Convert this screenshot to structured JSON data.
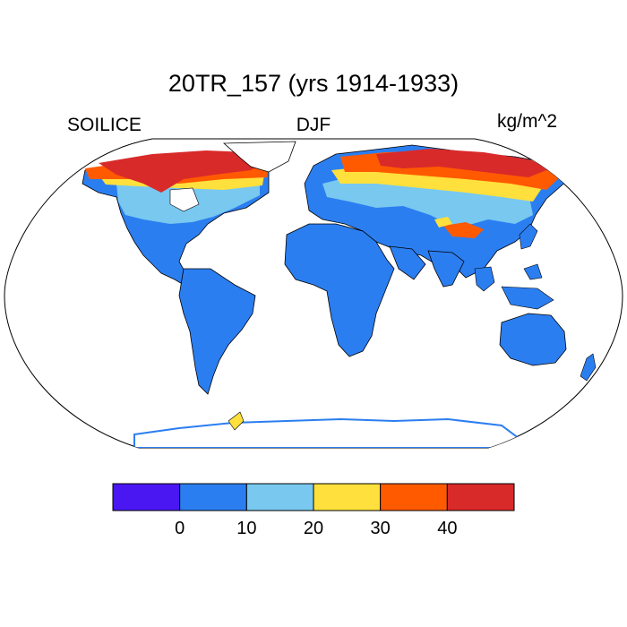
{
  "plot": {
    "title": "20TR_157 (yrs 1914-1933)",
    "left_label": "SOILICE",
    "center_label": "DJF",
    "right_label": "kg/m^2"
  },
  "colors": {
    "ocean": "#ffffff",
    "coast": "#000000",
    "level_lt0": "#4a17f2",
    "level_0_10": "#2b7ef0",
    "level_10_20": "#78c8f0",
    "level_20_30": "#ffe03c",
    "level_30_40": "#ff5a00",
    "level_gt40": "#d92a2a"
  },
  "colorbar": {
    "tick_labels": [
      "0",
      "10",
      "20",
      "30",
      "40"
    ],
    "colors": [
      "#4a17f2",
      "#2b7ef0",
      "#78c8f0",
      "#ffe03c",
      "#ff5a00",
      "#d92a2a"
    ]
  },
  "map": {
    "projection": "Robinson",
    "variable_units": "kg/m^2"
  }
}
